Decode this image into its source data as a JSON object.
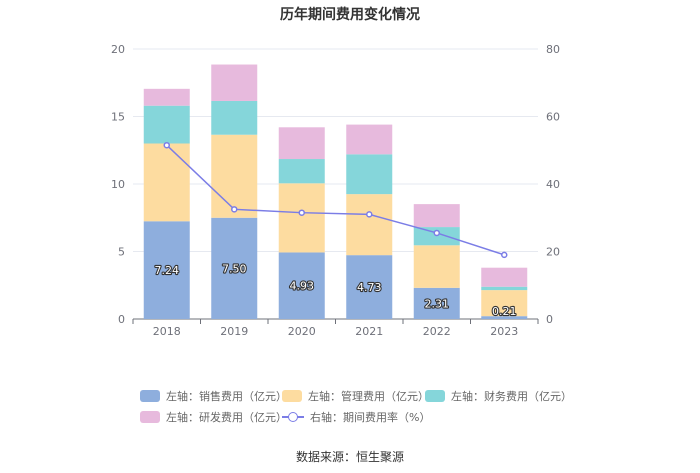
{
  "chart_data": {
    "type": "bar",
    "title": "历年期间费用变化情况",
    "categories": [
      "2018",
      "2019",
      "2020",
      "2021",
      "2022",
      "2023"
    ],
    "stacked": true,
    "series": [
      {
        "name": "左轴：销售费用（亿元）",
        "axis": "left",
        "color": "#8eaedd",
        "values": [
          7.24,
          7.5,
          4.93,
          4.73,
          2.31,
          0.21
        ],
        "labels": [
          "7.24",
          "7.50",
          "4.93",
          "4.73",
          "2.31",
          "0.21"
        ]
      },
      {
        "name": "左轴：管理费用（亿元）",
        "axis": "left",
        "color": "#fddca0",
        "values": [
          5.76,
          6.15,
          5.12,
          4.52,
          3.15,
          1.93
        ]
      },
      {
        "name": "左轴：财务费用（亿元）",
        "axis": "left",
        "color": "#85d6da",
        "values": [
          2.8,
          2.5,
          1.8,
          2.95,
          1.35,
          0.25
        ]
      },
      {
        "name": "左轴：研发费用（亿元）",
        "axis": "left",
        "color": "#e7badd",
        "values": [
          1.25,
          2.7,
          2.35,
          2.2,
          1.7,
          1.41
        ]
      },
      {
        "name": "右轴：期间费用率（%）",
        "axis": "right",
        "type": "line",
        "color": "#7b7de6",
        "values": [
          51.5,
          32.5,
          31.5,
          31.0,
          25.5,
          19.0
        ]
      }
    ],
    "left_axis": {
      "min": 0,
      "max": 20,
      "ticks": [
        "0",
        "5",
        "10",
        "15",
        "20"
      ]
    },
    "right_axis": {
      "min": 0,
      "max": 80,
      "ticks": [
        "0",
        "20",
        "40",
        "60",
        "80"
      ]
    },
    "grid": true,
    "legend_position": "bottom"
  },
  "source_text": "数据来源：恒生聚源"
}
